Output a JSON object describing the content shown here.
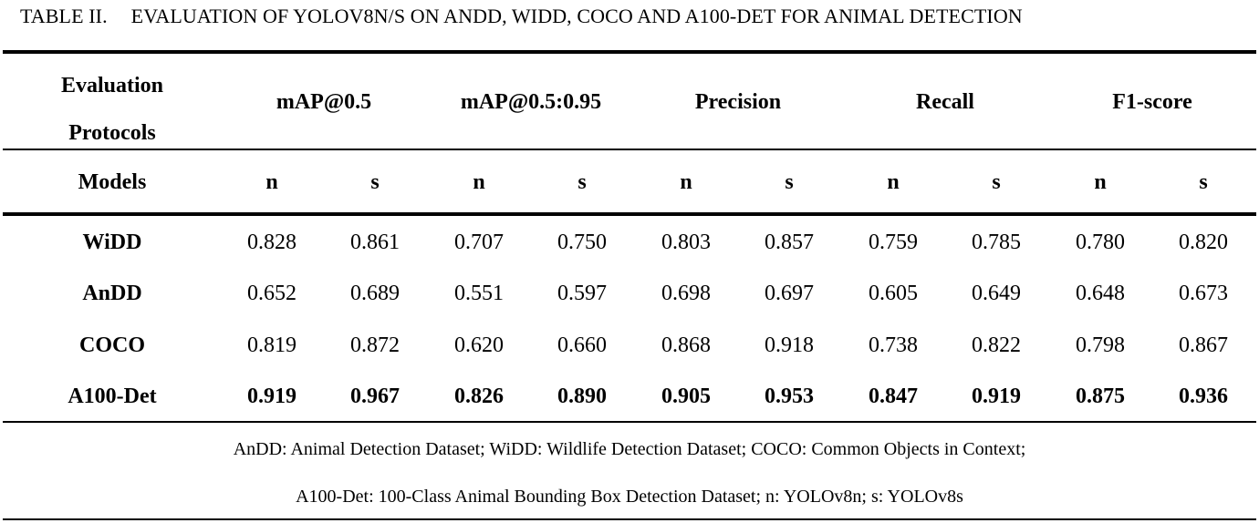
{
  "caption": {
    "label": "TABLE II.",
    "title": "EVALUATION OF YOLOV8N/S ON ANDD, WIDD, COCO AND A100-DET FOR ANIMAL DETECTION"
  },
  "header": {
    "protocol_line1": "Evaluation",
    "protocol_line2": "Protocols",
    "models_label": "Models",
    "metrics": [
      "mAP@0.5",
      "mAP@0.5:0.95",
      "Precision",
      "Recall",
      "F1-score"
    ],
    "sub_labels": [
      "n",
      "s",
      "n",
      "s",
      "n",
      "s",
      "n",
      "s",
      "n",
      "s"
    ]
  },
  "rows": [
    {
      "model": "WiDD",
      "values": [
        "0.828",
        "0.861",
        "0.707",
        "0.750",
        "0.803",
        "0.857",
        "0.759",
        "0.785",
        "0.780",
        "0.820"
      ],
      "bold": false
    },
    {
      "model": "AnDD",
      "values": [
        "0.652",
        "0.689",
        "0.551",
        "0.597",
        "0.698",
        "0.697",
        "0.605",
        "0.649",
        "0.648",
        "0.673"
      ],
      "bold": false
    },
    {
      "model": "COCO",
      "values": [
        "0.819",
        "0.872",
        "0.620",
        "0.660",
        "0.868",
        "0.918",
        "0.738",
        "0.822",
        "0.798",
        "0.867"
      ],
      "bold": false
    },
    {
      "model": "A100-Det",
      "values": [
        "0.919",
        "0.967",
        "0.826",
        "0.890",
        "0.905",
        "0.953",
        "0.847",
        "0.919",
        "0.875",
        "0.936"
      ],
      "bold": true
    }
  ],
  "footnote": {
    "line1": "AnDD: Animal Detection Dataset; WiDD: Wildlife Detection Dataset; COCO: Common Objects in Context;",
    "line2": "A100-Det: 100-Class Animal Bounding Box Detection Dataset; n: YOLOv8n; s: YOLOv8s"
  }
}
